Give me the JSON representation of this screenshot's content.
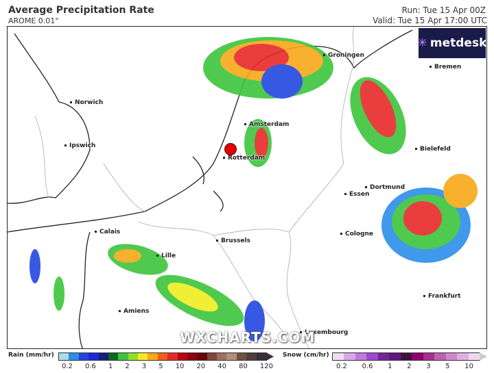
{
  "header": {
    "title": "Average Precipitation Rate",
    "model": "AROME 0.01°",
    "run": "Run: Tue 15 Apr 00Z",
    "valid": "Valid: Tue 15 Apr 17:00 UTC"
  },
  "logo": {
    "text": "metdesk"
  },
  "watermark": "WXCHARTS.COM",
  "cities": [
    {
      "name": "Norwich"
    },
    {
      "name": "Ipswich"
    },
    {
      "name": "Groningen"
    },
    {
      "name": "Bremen"
    },
    {
      "name": "Amsterdam"
    },
    {
      "name": "Rotterdam"
    },
    {
      "name": "Bielefeld"
    },
    {
      "name": "Dortmund"
    },
    {
      "name": "Essen"
    },
    {
      "name": "Calais"
    },
    {
      "name": "Cologne"
    },
    {
      "name": "Brussels"
    },
    {
      "name": "Lille"
    },
    {
      "name": "Frankfurt"
    },
    {
      "name": "Amiens"
    },
    {
      "name": "Luxembourg"
    }
  ],
  "marker_color": "#e00000",
  "legend": {
    "rain": {
      "label": "Rain (mm/hr)",
      "ticks": [
        "0.2",
        "0.6",
        "1",
        "2",
        "3",
        "5",
        "10",
        "20",
        "40",
        "80",
        "120"
      ],
      "colors": [
        "#a8dce8",
        "#2b8ee8",
        "#2046e0",
        "#1a2ad8",
        "#14207a",
        "#0a6a1e",
        "#3cc43c",
        "#8ee028",
        "#f0ec20",
        "#f8a818",
        "#f06018",
        "#e82828",
        "#c00010",
        "#900010",
        "#680808",
        "#804838",
        "#a07060",
        "#b09078",
        "#705040",
        "#504038",
        "#383038"
      ]
    },
    "snow": {
      "label": "Snow (cm/hr)",
      "ticks": [
        "0.2",
        "0.6",
        "1",
        "2",
        "3",
        "5",
        "10"
      ],
      "colors": [
        "#f0dcf0",
        "#d8a8e8",
        "#c078e0",
        "#a048d0",
        "#702898",
        "#601880",
        "#401040",
        "#900070",
        "#a83090",
        "#c060b0",
        "#d088c8",
        "#e0b0e0",
        "#f0d8f0"
      ]
    }
  }
}
